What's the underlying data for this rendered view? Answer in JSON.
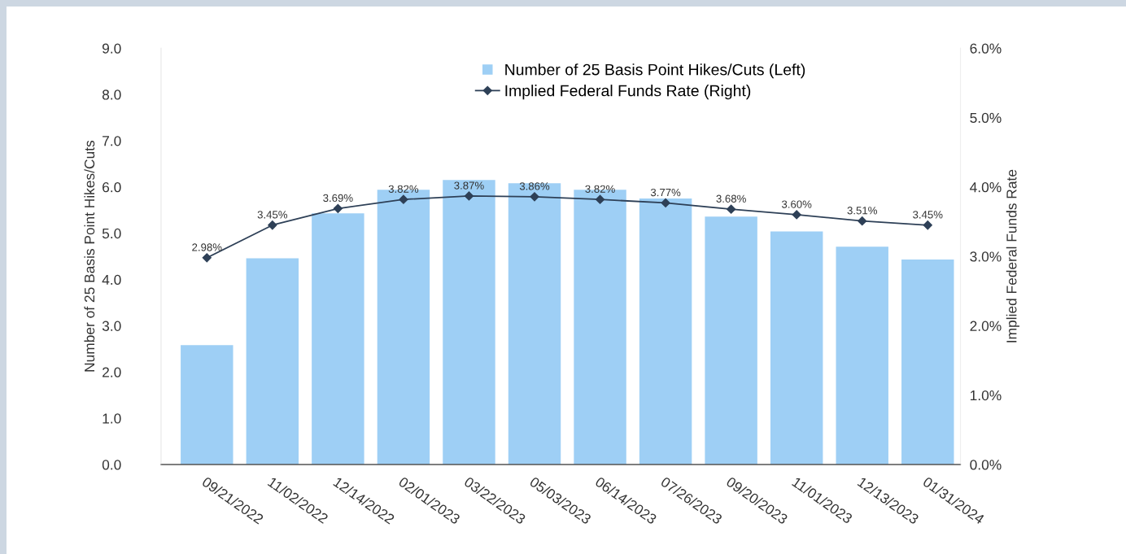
{
  "chart_data": {
    "type": "bar",
    "categories": [
      "09/21/2022",
      "11/02/2022",
      "12/14/2022",
      "02/01/2023",
      "03/22/2023",
      "05/03/2023",
      "06/14/2023",
      "07/26/2023",
      "09/20/2023",
      "11/01/2023",
      "12/13/2023",
      "01/31/2024"
    ],
    "ylabel": "Number of 25 Basis Point Hikes/Cuts",
    "y2label": "Implied Federal Funds Rate",
    "series": [
      {
        "name": "Number of 25 Basis Point Hikes/Cuts (Left)",
        "color": "#9ecff5",
        "values": [
          2.58,
          4.46,
          5.43,
          5.94,
          6.15,
          6.08,
          5.94,
          5.75,
          5.36,
          5.04,
          4.71,
          4.43
        ]
      },
      {
        "name": "Implied Federal Funds Rate (Right)",
        "type": "line",
        "axis": "y2",
        "color": "#2e4057",
        "marker": "diamond",
        "values": [
          2.98,
          3.45,
          3.69,
          3.82,
          3.87,
          3.86,
          3.82,
          3.77,
          3.68,
          3.6,
          3.51,
          3.45
        ],
        "value_labels": [
          "2.98%",
          "3.45%",
          "3.69%",
          "3.82%",
          "3.87%",
          "3.86%",
          "3.82%",
          "3.77%",
          "3.68%",
          "3.60%",
          "3.51%",
          "3.45%"
        ]
      }
    ],
    "ylim": [
      0,
      9
    ],
    "yticks": [
      {
        "value": 0,
        "label": "0.0"
      },
      {
        "value": 1,
        "label": "1.0"
      },
      {
        "value": 2,
        "label": "2.0"
      },
      {
        "value": 3,
        "label": "3.0"
      },
      {
        "value": 4,
        "label": "4.0"
      },
      {
        "value": 5,
        "label": "5.0"
      },
      {
        "value": 6,
        "label": "6.0"
      },
      {
        "value": 7,
        "label": "7.0"
      },
      {
        "value": 8,
        "label": "8.0"
      },
      {
        "value": 9,
        "label": "9.0"
      }
    ],
    "y2lim": [
      0,
      6
    ],
    "y2ticks": [
      {
        "value": 0,
        "label": "0.0%"
      },
      {
        "value": 1,
        "label": "1.0%"
      },
      {
        "value": 2,
        "label": "2.0%"
      },
      {
        "value": 3,
        "label": "3.0%"
      },
      {
        "value": 4,
        "label": "4.0%"
      },
      {
        "value": 5,
        "label": "5.0%"
      },
      {
        "value": 6,
        "label": "6.0%"
      }
    ],
    "grid": false,
    "legend": "top"
  }
}
